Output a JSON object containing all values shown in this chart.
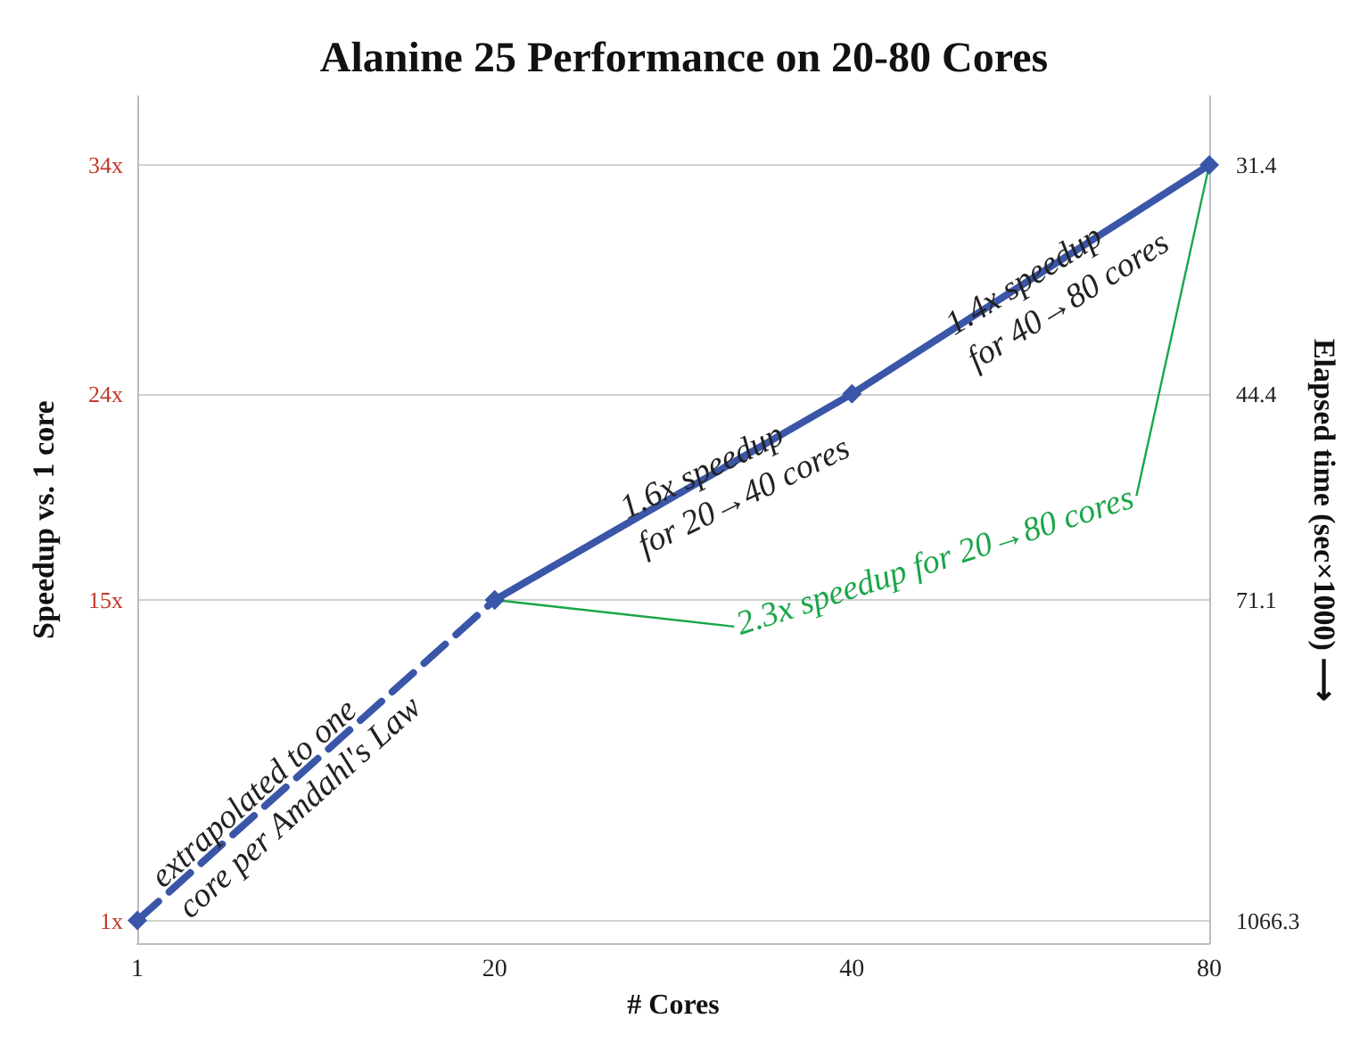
{
  "chart_data": {
    "type": "line",
    "title": "Alanine 25 Performance on 20-80 Cores",
    "xlabel": "# Cores",
    "ylabel": "Speedup vs. 1 core",
    "y2label": "Elapsed time (sec×1000) ⟶",
    "categories": [
      "1",
      "20",
      "40",
      "80"
    ],
    "series": [
      {
        "color": "#3a56a8",
        "values": [
          1,
          15,
          null,
          null
        ],
        "line_style": "dashed"
      },
      {
        "color": "#3a56a8",
        "values": [
          null,
          15,
          24,
          34
        ],
        "line_style": "solid"
      }
    ],
    "ylim": [
      0,
      37
    ],
    "yticks": [
      {
        "value": 1,
        "label": "1x"
      },
      {
        "value": 15,
        "label": "15x"
      },
      {
        "value": 24,
        "label": "24x"
      },
      {
        "value": 34,
        "label": "34x"
      }
    ],
    "annotations": [
      "extrapolated to one core per Amdahl's Law",
      "1.6x speedup for 20→40 cores",
      "1.4x speedup for 40→80 cores",
      {
        "text": "2.3x speedup for 20→80 cores",
        "x": "80",
        "y": 34
      },
      "1066.3",
      "71.1",
      "44.4",
      "31.4"
    ],
    "marker": "diamond",
    "grid": "y"
  }
}
